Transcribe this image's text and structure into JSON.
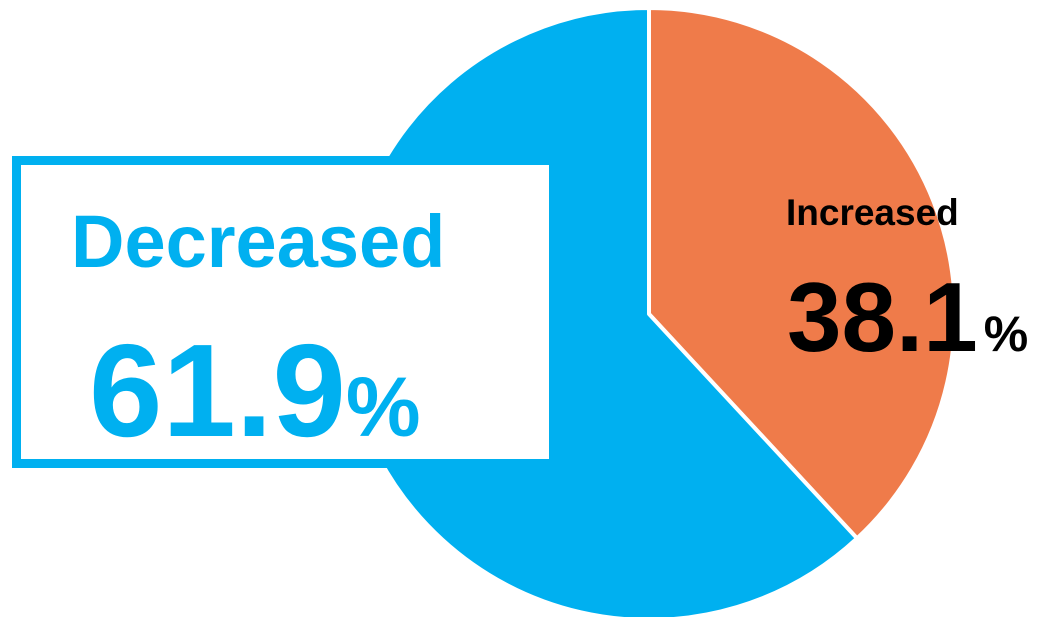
{
  "chart_data": {
    "type": "pie",
    "slices": [
      {
        "label": "Decreased",
        "value": 61.9,
        "display": "61.9",
        "unit": "%",
        "color": "#00b0f0"
      },
      {
        "label": "Increased",
        "value": 38.1,
        "display": "38.1",
        "unit": "%",
        "color": "#ef7b4a"
      }
    ],
    "start": "12 o'clock",
    "direction": "clockwise, Increased first",
    "slice_separator_color": "#ffffff"
  }
}
